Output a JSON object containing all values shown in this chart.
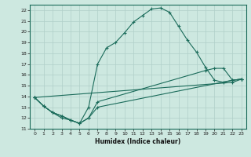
{
  "title": "",
  "xlabel": "Humidex (Indice chaleur)",
  "bg_color": "#cde8e0",
  "grid_color": "#b0cfc8",
  "line_color": "#1a6b5a",
  "xlim": [
    -0.5,
    23.5
  ],
  "ylim": [
    11,
    22.5
  ],
  "xticks": [
    0,
    1,
    2,
    3,
    4,
    5,
    6,
    7,
    8,
    9,
    10,
    11,
    12,
    13,
    14,
    15,
    16,
    17,
    18,
    19,
    20,
    21,
    22,
    23
  ],
  "yticks": [
    11,
    12,
    13,
    14,
    15,
    16,
    17,
    18,
    19,
    20,
    21,
    22
  ],
  "line1_x": [
    0,
    1,
    2,
    3,
    4,
    5,
    6,
    7,
    8,
    9,
    10,
    11,
    12,
    13,
    14,
    15,
    16,
    17,
    18,
    19,
    20,
    21,
    22,
    23
  ],
  "line1_y": [
    13.9,
    13.1,
    12.5,
    12.0,
    11.8,
    11.5,
    13.0,
    17.0,
    18.5,
    19.0,
    19.9,
    20.9,
    21.5,
    22.1,
    22.2,
    21.8,
    20.5,
    19.2,
    18.1,
    16.7,
    15.5,
    15.3,
    15.5,
    15.6
  ],
  "line2_x": [
    0,
    1,
    2,
    3,
    4,
    5,
    6,
    7,
    19,
    20,
    21,
    22,
    23
  ],
  "line2_y": [
    13.9,
    13.1,
    12.5,
    12.2,
    11.8,
    11.5,
    12.0,
    13.5,
    16.4,
    16.6,
    16.6,
    15.5,
    15.6
  ],
  "line3_x": [
    0,
    1,
    2,
    3,
    4,
    5,
    6,
    7,
    22,
    23
  ],
  "line3_y": [
    13.9,
    13.1,
    12.5,
    12.2,
    11.8,
    11.5,
    12.0,
    13.0,
    15.5,
    15.6
  ],
  "line4_x": [
    0,
    22,
    23
  ],
  "line4_y": [
    13.9,
    15.3,
    15.6
  ]
}
